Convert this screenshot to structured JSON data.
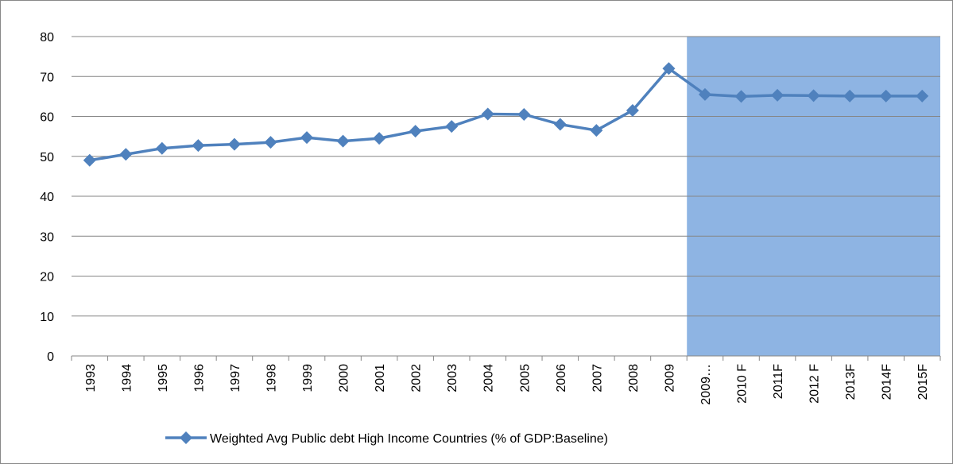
{
  "chart_data": {
    "type": "line",
    "categories": [
      "1993",
      "1994",
      "1995",
      "1996",
      "1997",
      "1998",
      "1999",
      "2000",
      "2001",
      "2002",
      "2003",
      "2004",
      "2005",
      "2006",
      "2007",
      "2008",
      "2009",
      "2009…",
      "2010 F",
      "2011F",
      "2012 F",
      "2013F",
      "2014F",
      "2015F"
    ],
    "series": [
      {
        "name": "Weighted Avg Public debt High Income Countries (% of GDP:Baseline)",
        "color": "#4f81bd",
        "values": [
          49,
          50.5,
          52,
          52.7,
          53,
          53.5,
          54.7,
          53.8,
          54.5,
          56.3,
          57.5,
          60.6,
          60.5,
          58,
          56.5,
          61.5,
          72,
          65.5,
          65,
          65.3,
          65.2,
          65.1,
          65.1,
          65.1
        ]
      }
    ],
    "ylim": [
      0,
      80
    ],
    "yticks": [
      0,
      10,
      20,
      30,
      40,
      50,
      60,
      70,
      80
    ],
    "grid": true,
    "legend": "bottom",
    "shade": {
      "color": "#8eb4e3",
      "start_category": 17
    }
  }
}
